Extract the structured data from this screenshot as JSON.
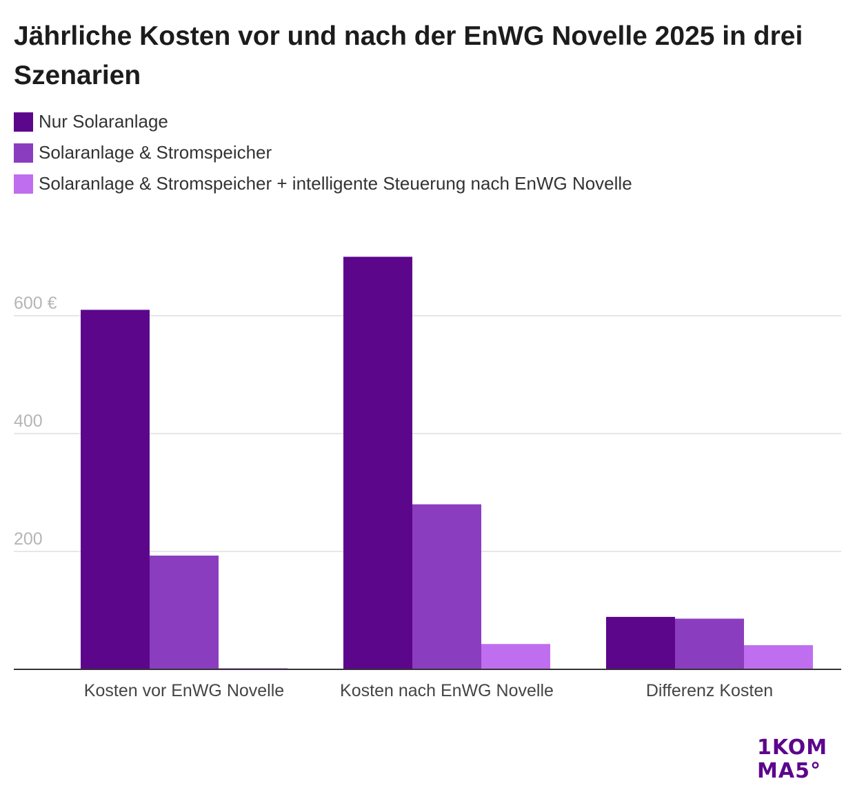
{
  "chart_data": {
    "type": "bar",
    "title": "Jährliche Kosten vor und nach der EnWG Novelle 2025 in drei Szenarien",
    "categories": [
      "Kosten vor EnWG Novelle",
      "Kosten nach EnWG Novelle",
      "Differenz Kosten"
    ],
    "series": [
      {
        "name": "Nur Solaranlage",
        "color": "#5c068c",
        "values": [
          610,
          700,
          89
        ]
      },
      {
        "name": "Solaranlage & Stromspeicher",
        "color": "#8b3dbf",
        "values": [
          193,
          280,
          86
        ]
      },
      {
        "name": "Solaranlage & Stromspeicher + intelligente Steuerung nach EnWG Novelle",
        "color": "#c06ef0",
        "values": [
          2,
          43,
          41
        ]
      }
    ],
    "y_ticks": [
      {
        "value": 200,
        "label": "200"
      },
      {
        "value": 400,
        "label": "400"
      },
      {
        "value": 600,
        "label": "600 €"
      }
    ],
    "ylim": [
      0,
      700
    ],
    "grid": true,
    "legend_position": "top-left",
    "xlabel": "",
    "ylabel": ""
  },
  "logo": {
    "line1": "1KOM",
    "line2": "MA5°"
  }
}
